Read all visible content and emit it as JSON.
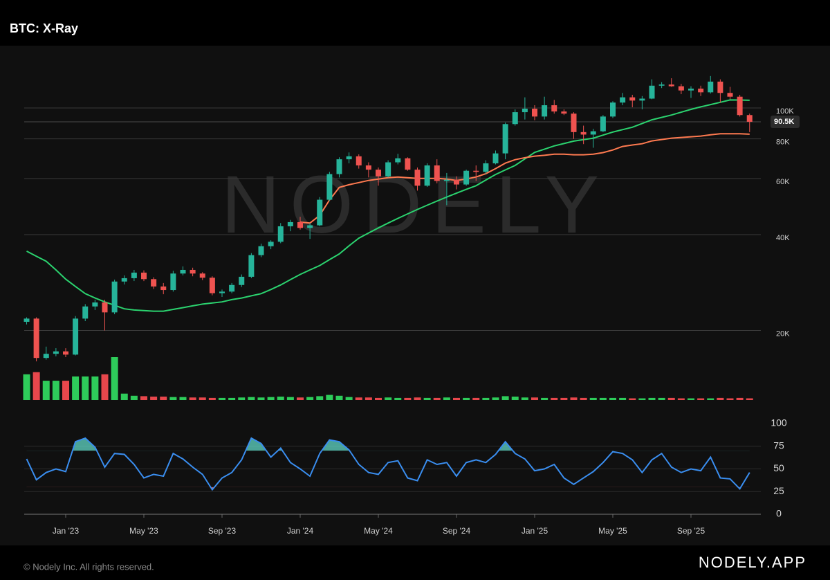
{
  "header": {
    "title": "BTC: X-Ray"
  },
  "watermark": "NODELY",
  "footer": {
    "copyright": "© Nodely Inc. All rights reserved.",
    "brand": "NODELY.APP"
  },
  "chart_data": [
    {
      "type": "candlestick",
      "categories": [
        null,
        null,
        null,
        null,
        "Jan '23",
        null,
        null,
        null,
        null,
        null,
        null,
        null,
        "May '23",
        null,
        null,
        null,
        null,
        null,
        null,
        null,
        "Sep '23",
        null,
        null,
        null,
        null,
        null,
        null,
        null,
        "Jan '24",
        null,
        null,
        null,
        null,
        null,
        null,
        null,
        "May '24",
        null,
        null,
        null,
        null,
        null,
        null,
        null,
        "Sep '24",
        null,
        null,
        null,
        null,
        null,
        null,
        null,
        "Jan '25",
        null,
        null,
        null,
        null,
        null,
        null,
        null,
        "May '25",
        null,
        null,
        null,
        null,
        null,
        null,
        null,
        "Sep '25",
        null,
        null,
        null,
        null,
        null,
        null
      ],
      "open": [
        21300,
        21800,
        16400,
        16900,
        17200,
        16800,
        21800,
        23800,
        24500,
        22800,
        28500,
        29200,
        30400,
        29000,
        27500,
        26800,
        30200,
        31000,
        30200,
        29300,
        26200,
        26500,
        27800,
        29500,
        34500,
        36800,
        38000,
        42500,
        43800,
        42000,
        42800,
        51500,
        62000,
        69000,
        70500,
        66000,
        64000,
        61000,
        67500,
        69500,
        64000,
        57000,
        66000,
        59000,
        59500,
        57500,
        63500,
        63000,
        67000,
        72000,
        89000,
        97000,
        99500,
        94000,
        102000,
        97500,
        96000,
        84000,
        82500,
        84500,
        94000,
        104000,
        108000,
        105500,
        107000,
        117500,
        118500,
        117000,
        113500,
        115000,
        112000,
        121000,
        111500,
        108500,
        95000
      ],
      "high": [
        22000,
        22000,
        17800,
        17600,
        17600,
        22200,
        24200,
        25000,
        25000,
        28900,
        29800,
        31000,
        30900,
        29400,
        28200,
        30800,
        31800,
        31500,
        30500,
        29600,
        26900,
        28200,
        30000,
        35000,
        37500,
        38400,
        43500,
        44500,
        45500,
        43500,
        52500,
        63000,
        70000,
        72500,
        71500,
        67500,
        65000,
        68500,
        71800,
        70000,
        65000,
        67000,
        69000,
        62500,
        61000,
        64000,
        66000,
        68500,
        73500,
        90000,
        99000,
        108000,
        102000,
        108500,
        106000,
        99000,
        97000,
        88000,
        86000,
        95000,
        105000,
        111500,
        110000,
        109000,
        123000,
        120500,
        124000,
        119000,
        117000,
        117500,
        126000,
        123000,
        116500,
        110000,
        96000
      ],
      "low": [
        20900,
        16000,
        16200,
        16600,
        16500,
        16700,
        21400,
        23200,
        20000,
        22500,
        27900,
        28600,
        28600,
        27000,
        26000,
        26500,
        29800,
        29600,
        28800,
        25800,
        25500,
        26200,
        27400,
        29200,
        34000,
        36000,
        37600,
        41000,
        41500,
        38800,
        42500,
        51000,
        60500,
        67000,
        64500,
        60500,
        57000,
        60500,
        66500,
        63500,
        55000,
        56500,
        58000,
        49500,
        55500,
        57000,
        59000,
        62000,
        66500,
        69000,
        88000,
        92000,
        91500,
        92000,
        96000,
        95000,
        80000,
        77000,
        75000,
        84000,
        93000,
        102000,
        100500,
        99000,
        106500,
        115500,
        116500,
        110500,
        107500,
        109000,
        111000,
        104000,
        106500,
        94000,
        84000
      ],
      "close": [
        21800,
        16400,
        16900,
        17200,
        16800,
        21800,
        23800,
        24500,
        22800,
        28500,
        29200,
        30400,
        29000,
        27500,
        26800,
        30200,
        31000,
        30200,
        29300,
        26200,
        26500,
        27800,
        29500,
        34500,
        36800,
        38000,
        42500,
        43800,
        42000,
        42800,
        51500,
        62000,
        69000,
        70500,
        66000,
        64000,
        61000,
        67500,
        69500,
        64000,
        57000,
        66000,
        59000,
        59500,
        57500,
        63500,
        63000,
        67000,
        72000,
        89000,
        97000,
        99500,
        94000,
        102000,
        97500,
        96000,
        84000,
        82500,
        84500,
        94000,
        104000,
        108000,
        105500,
        107000,
        117500,
        118500,
        117000,
        113500,
        115000,
        112000,
        121000,
        111500,
        108500,
        95000,
        90500
      ],
      "volume": [
        60,
        65,
        45,
        45,
        45,
        55,
        55,
        55,
        60,
        100,
        15,
        10,
        9,
        8,
        8,
        7,
        7,
        6,
        6,
        5,
        5,
        5,
        6,
        7,
        6,
        7,
        8,
        7,
        6,
        7,
        9,
        12,
        10,
        7,
        6,
        6,
        5,
        6,
        5,
        5,
        6,
        5,
        5,
        6,
        5,
        5,
        5,
        5,
        6,
        9,
        8,
        6,
        6,
        5,
        5,
        5,
        6,
        5,
        5,
        5,
        5,
        5,
        4,
        4,
        5,
        5,
        5,
        4,
        4,
        4,
        4,
        5,
        4,
        5,
        4
      ],
      "up_color": "#26b49a",
      "down_color": "#ef5350",
      "volume_up_color": "#2ecc5a",
      "volume_down_color": "#e8474c",
      "series": [
        {
          "color": "#2bd36f",
          "values": [
            35500,
            34200,
            33000,
            31000,
            29000,
            27500,
            26100,
            25300,
            24600,
            24000,
            23400,
            23200,
            23100,
            23000,
            23000,
            23300,
            23600,
            23900,
            24200,
            24400,
            24600,
            25000,
            25300,
            25700,
            26100,
            26900,
            27800,
            28900,
            30000,
            31000,
            32000,
            33400,
            34800,
            36900,
            39000,
            40500,
            42000,
            43500,
            45000,
            46500,
            48000,
            49500,
            51000,
            52500,
            54000,
            55500,
            57000,
            59400,
            61800,
            63900,
            66000,
            69200,
            72500,
            74200,
            76000,
            77300,
            78700,
            79500,
            80400,
            82200,
            84000,
            85500,
            87000,
            89400,
            91800,
            93400,
            95000,
            97000,
            99000,
            100800,
            102500,
            104200,
            106000,
            105900,
            105700
          ]
        },
        {
          "color": "#ff7a50",
          "values": [
            null,
            null,
            null,
            null,
            null,
            null,
            null,
            null,
            null,
            null,
            null,
            null,
            null,
            null,
            null,
            null,
            null,
            null,
            null,
            null,
            null,
            null,
            null,
            null,
            null,
            null,
            null,
            null,
            43800,
            43500,
            46000,
            51400,
            56300,
            57400,
            58300,
            59200,
            59800,
            60400,
            60700,
            60400,
            60100,
            60100,
            60100,
            59800,
            59200,
            59800,
            60700,
            62200,
            64500,
            67100,
            68800,
            69800,
            70600,
            71000,
            71600,
            71600,
            71300,
            71300,
            71600,
            72400,
            73800,
            75700,
            76500,
            77200,
            78800,
            79600,
            80400,
            80800,
            81200,
            81600,
            82400,
            83000,
            83000,
            83000,
            82700
          ]
        }
      ],
      "log_scale": true,
      "ylim": [
        15000,
        150000
      ],
      "yticks": [
        {
          "value": 20000,
          "label": "20K"
        },
        {
          "value": 40000,
          "label": "40K"
        },
        {
          "value": 60000,
          "label": "60K"
        },
        {
          "value": 80000,
          "label": "80K"
        },
        {
          "value": 100000,
          "label": "100K"
        }
      ],
      "price_marker": {
        "value": 90500,
        "label": "90.5K"
      },
      "grid": true
    },
    {
      "type": "line",
      "series": [
        {
          "color": "#3a8ef0",
          "values": [
            61,
            38,
            46,
            50,
            47,
            80,
            84,
            74,
            52,
            67,
            66,
            55,
            40,
            44,
            42,
            67,
            61,
            52,
            44,
            27,
            40,
            46,
            60,
            84,
            78,
            63,
            73,
            57,
            50,
            42,
            67,
            82,
            80,
            71,
            55,
            46,
            44,
            57,
            59,
            40,
            37,
            60,
            55,
            57,
            42,
            57,
            60,
            57,
            66,
            80,
            67,
            61,
            48,
            50,
            55,
            40,
            33,
            40,
            47,
            57,
            69,
            67,
            60,
            46,
            60,
            67,
            52,
            46,
            50,
            48,
            63,
            40,
            39,
            28,
            46
          ]
        }
      ],
      "ylim": [
        0,
        100
      ],
      "yticks": [
        0,
        25,
        50,
        75,
        100
      ],
      "overbought": 70,
      "oversold": 30,
      "overbought_color": "#5fd6c4",
      "oversold_color": "#f26b6b",
      "grid": true
    }
  ]
}
